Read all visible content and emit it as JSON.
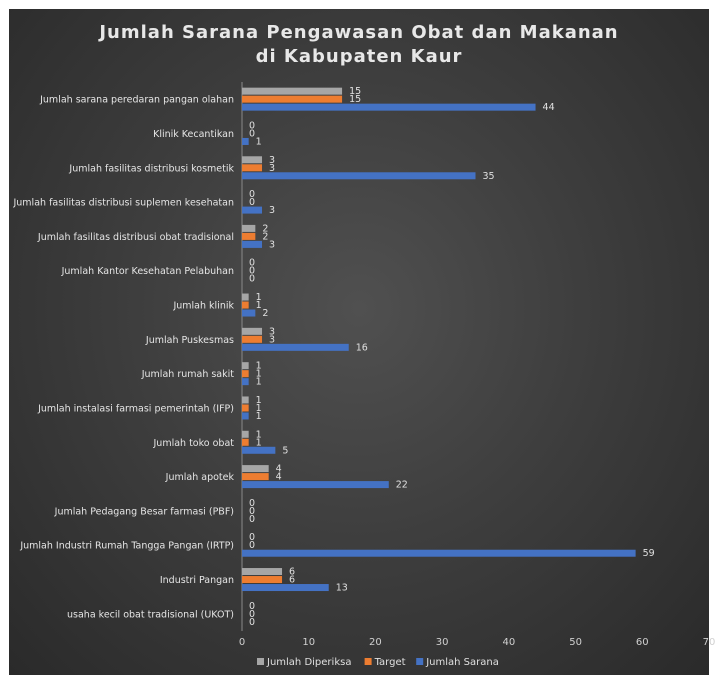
{
  "chart_data": {
    "type": "bar",
    "orientation": "horizontal",
    "title": [
      "Jumlah Sarana Pengawasan Obat dan Makanan",
      "di Kabupaten Kaur"
    ],
    "categories": [
      "Jumlah sarana peredaran pangan olahan",
      "Klinik Kecantikan",
      "Jumlah fasilitas distribusi kosmetik",
      "Jumlah fasilitas distribusi suplemen kesehatan",
      "Jumlah fasilitas distribusi obat tradisional",
      "Jumlah Kantor Kesehatan Pelabuhan",
      "Jumlah klinik",
      "Jumlah Puskesmas",
      "Jumlah rumah sakit",
      "Jumlah instalasi farmasi pemerintah (IFP)",
      "Jumlah toko obat",
      "Jumlah apotek",
      "Jumlah Pedagang Besar farmasi (PBF)",
      "Jumlah Industri Rumah Tangga Pangan (IRTP)",
      "Industri Pangan",
      "usaha kecil obat tradisional (UKOT)"
    ],
    "series": [
      {
        "name": "Jumlah Diperiksa",
        "color": "#a6a6a6",
        "values": [
          15,
          0,
          3,
          0,
          2,
          0,
          1,
          3,
          1,
          1,
          1,
          4,
          0,
          0,
          6,
          0
        ]
      },
      {
        "name": "Target",
        "color": "#ed7d31",
        "values": [
          15,
          0,
          3,
          0,
          2,
          0,
          1,
          3,
          1,
          1,
          1,
          4,
          0,
          0,
          6,
          0
        ]
      },
      {
        "name": "Jumlah Sarana",
        "color": "#4472c4",
        "values": [
          44,
          1,
          35,
          3,
          3,
          0,
          2,
          16,
          1,
          1,
          5,
          22,
          0,
          59,
          13,
          0
        ]
      }
    ],
    "xlim": [
      0,
      70
    ],
    "xticks": [
      0,
      10,
      20,
      30,
      40,
      50,
      60,
      70
    ],
    "grid": false,
    "legend_position": "bottom"
  }
}
